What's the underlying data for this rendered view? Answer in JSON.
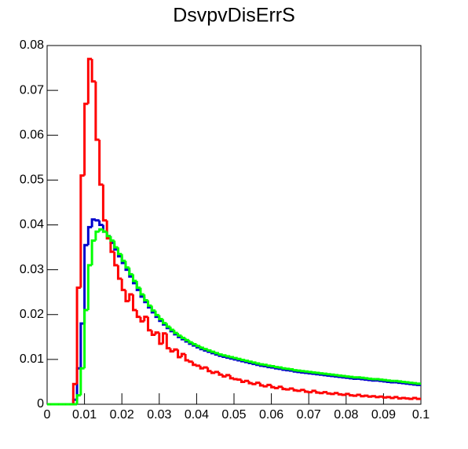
{
  "chart_data": {
    "type": "histogram",
    "title": "DsvpvDisErrS",
    "bins": [
      0,
      0.001,
      0.002,
      0.003,
      0.004,
      0.005,
      0.006,
      0.007,
      0.008,
      0.009,
      0.01,
      0.011,
      0.012,
      0.013,
      0.014,
      0.015,
      0.016,
      0.017,
      0.018,
      0.019,
      0.02,
      0.021,
      0.022,
      0.023,
      0.024,
      0.025,
      0.026,
      0.027,
      0.028,
      0.029,
      0.03,
      0.031,
      0.032,
      0.033,
      0.034,
      0.035,
      0.036,
      0.037,
      0.038,
      0.039,
      0.04,
      0.041,
      0.042,
      0.043,
      0.044,
      0.045,
      0.046,
      0.047,
      0.048,
      0.049,
      0.05,
      0.051,
      0.052,
      0.053,
      0.054,
      0.055,
      0.056,
      0.057,
      0.058,
      0.059,
      0.06,
      0.061,
      0.062,
      0.063,
      0.064,
      0.065,
      0.066,
      0.067,
      0.068,
      0.069,
      0.07,
      0.071,
      0.072,
      0.073,
      0.074,
      0.075,
      0.076,
      0.077,
      0.078,
      0.079,
      0.08,
      0.081,
      0.082,
      0.083,
      0.084,
      0.085,
      0.086,
      0.087,
      0.088,
      0.089,
      0.09,
      0.091,
      0.092,
      0.093,
      0.094,
      0.095,
      0.096,
      0.097,
      0.098,
      0.099,
      0.1
    ],
    "series": [
      {
        "color": "#0000cc",
        "values": [
          0,
          0,
          0,
          0,
          0,
          0,
          0,
          0.001,
          0.008,
          0.018,
          0.0355,
          0.0395,
          0.0412,
          0.041,
          0.04,
          0.0385,
          0.0375,
          0.036,
          0.0345,
          0.033,
          0.0315,
          0.03,
          0.0285,
          0.027,
          0.0255,
          0.024,
          0.0228,
          0.0216,
          0.0205,
          0.0195,
          0.0186,
          0.0178,
          0.017,
          0.0163,
          0.0156,
          0.015,
          0.0145,
          0.014,
          0.0135,
          0.0131,
          0.0127,
          0.0123,
          0.012,
          0.0117,
          0.0114,
          0.0111,
          0.0108,
          0.0106,
          0.0104,
          0.0102,
          0.01,
          0.0098,
          0.0096,
          0.0094,
          0.0092,
          0.009,
          0.0088,
          0.0086,
          0.0085,
          0.0083,
          0.0082,
          0.008,
          0.0079,
          0.0077,
          0.0076,
          0.0075,
          0.0073,
          0.0072,
          0.0071,
          0.007,
          0.0069,
          0.0068,
          0.0067,
          0.0066,
          0.0065,
          0.0064,
          0.0063,
          0.0062,
          0.0061,
          0.006,
          0.0059,
          0.0058,
          0.0057,
          0.0057,
          0.0056,
          0.0055,
          0.0054,
          0.0053,
          0.0053,
          0.0052,
          0.0051,
          0.005,
          0.0049,
          0.0049,
          0.0048,
          0.0047,
          0.0046,
          0.0045,
          0.0044,
          0.0043
        ]
      },
      {
        "color": "#ff0000",
        "values": [
          0,
          0,
          0,
          0,
          0,
          0,
          0,
          0.0045,
          0.026,
          0.051,
          0.067,
          0.077,
          0.072,
          0.059,
          0.049,
          0.041,
          0.037,
          0.034,
          0.031,
          0.028,
          0.0255,
          0.023,
          0.0245,
          0.021,
          0.0195,
          0.0185,
          0.0195,
          0.0165,
          0.0155,
          0.016,
          0.0135,
          0.0158,
          0.0125,
          0.0118,
          0.0122,
          0.0105,
          0.0112,
          0.0098,
          0.0095,
          0.0088,
          0.0086,
          0.008,
          0.0082,
          0.0074,
          0.007,
          0.0072,
          0.0066,
          0.0062,
          0.0065,
          0.0058,
          0.0056,
          0.0055,
          0.005,
          0.0052,
          0.0047,
          0.0045,
          0.0048,
          0.0042,
          0.004,
          0.0043,
          0.0038,
          0.0036,
          0.0039,
          0.0034,
          0.0033,
          0.0035,
          0.0031,
          0.003,
          0.0032,
          0.0028,
          0.0027,
          0.003,
          0.0026,
          0.0025,
          0.0027,
          0.0024,
          0.0023,
          0.0025,
          0.0022,
          0.0021,
          0.0023,
          0.002,
          0.0019,
          0.0021,
          0.0018,
          0.0019,
          0.0017,
          0.0018,
          0.0016,
          0.0017,
          0.0015,
          0.0016,
          0.0014,
          0.0016,
          0.0013,
          0.0014,
          0.0013,
          0.0012,
          0.0014,
          0.0012
        ]
      },
      {
        "color": "#00ff00",
        "values": [
          0,
          0,
          0,
          0,
          0,
          0,
          0,
          0,
          0.002,
          0.008,
          0.021,
          0.031,
          0.0365,
          0.0385,
          0.039,
          0.0385,
          0.0375,
          0.0365,
          0.035,
          0.0335,
          0.032,
          0.0305,
          0.029,
          0.0275,
          0.026,
          0.0245,
          0.0232,
          0.022,
          0.0209,
          0.0199,
          0.019,
          0.0181,
          0.0173,
          0.0166,
          0.0159,
          0.0153,
          0.0148,
          0.0143,
          0.0138,
          0.0134,
          0.013,
          0.0126,
          0.0123,
          0.012,
          0.0117,
          0.0114,
          0.0111,
          0.0109,
          0.0107,
          0.0105,
          0.0103,
          0.0101,
          0.0099,
          0.0097,
          0.0095,
          0.0093,
          0.0091,
          0.0089,
          0.0088,
          0.0086,
          0.0085,
          0.0083,
          0.0082,
          0.008,
          0.0079,
          0.0078,
          0.0076,
          0.0075,
          0.0074,
          0.0073,
          0.0072,
          0.0071,
          0.007,
          0.0069,
          0.0068,
          0.0067,
          0.0066,
          0.0065,
          0.0064,
          0.0063,
          0.0062,
          0.0061,
          0.006,
          0.006,
          0.0059,
          0.0058,
          0.0057,
          0.0056,
          0.0056,
          0.0055,
          0.0054,
          0.0053,
          0.0052,
          0.0052,
          0.0051,
          0.005,
          0.0049,
          0.0048,
          0.0047,
          0.0046
        ]
      }
    ],
    "xlim": [
      0,
      0.1
    ],
    "xticks": [
      0,
      0.01,
      0.02,
      0.03,
      0.04,
      0.05,
      0.06,
      0.07,
      0.08,
      0.09,
      0.1
    ],
    "ylim": [
      0,
      0.08
    ],
    "yticks": [
      0,
      0.01,
      0.02,
      0.03,
      0.04,
      0.05,
      0.06,
      0.07,
      0.08
    ],
    "grid": false
  }
}
